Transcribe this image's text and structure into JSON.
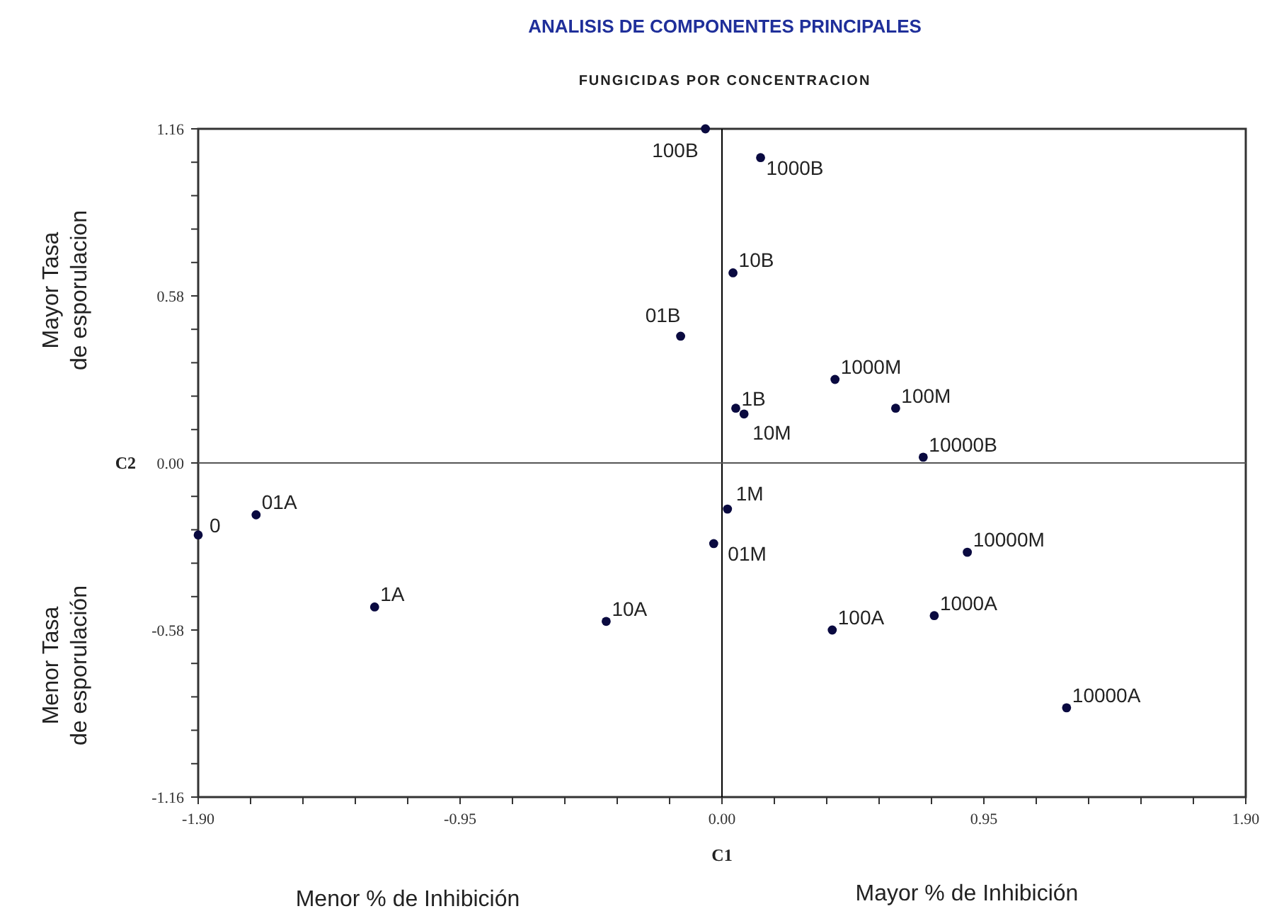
{
  "chart_data": {
    "type": "scatter",
    "title": "ANALISIS DE COMPONENTES PRINCIPALES",
    "subtitle": "FUNGICIDAS POR CONCENTRACION",
    "xlabel": "C1",
    "ylabel": "C2",
    "xlim": [
      -1.9,
      1.9
    ],
    "ylim": [
      -1.16,
      1.16
    ],
    "xticks": [
      {
        "value": -1.9,
        "label": "-1.90"
      },
      {
        "value": -1.71,
        "label": null
      },
      {
        "value": -1.52,
        "label": null
      },
      {
        "value": -1.33,
        "label": null
      },
      {
        "value": -1.14,
        "label": null
      },
      {
        "value": -0.95,
        "label": "-0.95"
      },
      {
        "value": -0.76,
        "label": null
      },
      {
        "value": -0.57,
        "label": null
      },
      {
        "value": -0.38,
        "label": null
      },
      {
        "value": -0.19,
        "label": null
      },
      {
        "value": 0,
        "label": "0.00"
      },
      {
        "value": 0.19,
        "label": null
      },
      {
        "value": 0.38,
        "label": null
      },
      {
        "value": 0.57,
        "label": null
      },
      {
        "value": 0.76,
        "label": null
      },
      {
        "value": 0.95,
        "label": "0.95"
      },
      {
        "value": 1.14,
        "label": null
      },
      {
        "value": 1.33,
        "label": null
      },
      {
        "value": 1.52,
        "label": null
      },
      {
        "value": 1.71,
        "label": null
      },
      {
        "value": 1.9,
        "label": "1.90"
      }
    ],
    "yticks": [
      {
        "value": -1.16,
        "label": "-1.16"
      },
      {
        "value": -1.044,
        "label": null
      },
      {
        "value": -0.928,
        "label": null
      },
      {
        "value": -0.812,
        "label": null
      },
      {
        "value": -0.696,
        "label": null
      },
      {
        "value": -0.58,
        "label": "-0.58"
      },
      {
        "value": -0.464,
        "label": null
      },
      {
        "value": -0.348,
        "label": null
      },
      {
        "value": -0.232,
        "label": null
      },
      {
        "value": -0.116,
        "label": null
      },
      {
        "value": 0,
        "label": "0.00"
      },
      {
        "value": 0.116,
        "label": null
      },
      {
        "value": 0.232,
        "label": null
      },
      {
        "value": 0.348,
        "label": null
      },
      {
        "value": 0.464,
        "label": null
      },
      {
        "value": 0.58,
        "label": "0.58"
      },
      {
        "value": 0.696,
        "label": null
      },
      {
        "value": 0.812,
        "label": null
      },
      {
        "value": 0.928,
        "label": null
      },
      {
        "value": 1.044,
        "label": null
      },
      {
        "value": 1.16,
        "label": "1.16"
      }
    ],
    "marker": "circle",
    "grid": false,
    "ref_lines": [
      {
        "axis": "x",
        "value": 0,
        "color": "#000000"
      },
      {
        "axis": "y",
        "value": 0,
        "color": "#555555"
      }
    ],
    "series": [
      {
        "color": "#0a0a40",
        "x": [
          -0.06,
          0.14,
          0.04,
          -0.15,
          0.41,
          0.63,
          0.05,
          0.08,
          0.73,
          -1.9,
          -1.69,
          0.02,
          -0.03,
          0.89,
          -1.26,
          -0.42,
          0.4,
          0.77,
          1.25
        ],
        "values": [
          1.16,
          1.06,
          0.66,
          0.44,
          0.29,
          0.19,
          0.19,
          0.17,
          0.02,
          -0.25,
          -0.18,
          -0.16,
          -0.28,
          -0.31,
          -0.5,
          -0.55,
          -0.58,
          -0.53,
          -0.85
        ]
      }
    ],
    "annotations": [
      {
        "text": "100B",
        "x": -0.06,
        "y": 1.16
      },
      {
        "text": "1000B",
        "x": 0.14,
        "y": 1.06
      },
      {
        "text": "10B",
        "x": 0.04,
        "y": 0.66
      },
      {
        "text": "01B",
        "x": -0.15,
        "y": 0.44
      },
      {
        "text": "1000M",
        "x": 0.41,
        "y": 0.29
      },
      {
        "text": "100M",
        "x": 0.63,
        "y": 0.19
      },
      {
        "text": "1B",
        "x": 0.05,
        "y": 0.19
      },
      {
        "text": "10M",
        "x": 0.08,
        "y": 0.17
      },
      {
        "text": "10000B",
        "x": 0.73,
        "y": 0.02
      },
      {
        "text": "0",
        "x": -1.9,
        "y": -0.25
      },
      {
        "text": "01A",
        "x": -1.69,
        "y": -0.18
      },
      {
        "text": "1M",
        "x": 0.02,
        "y": -0.16
      },
      {
        "text": "01M",
        "x": -0.03,
        "y": -0.28
      },
      {
        "text": "10000M",
        "x": 0.89,
        "y": -0.31
      },
      {
        "text": "1A",
        "x": -1.26,
        "y": -0.5
      },
      {
        "text": "10A",
        "x": -0.42,
        "y": -0.55
      },
      {
        "text": "100A",
        "x": 0.4,
        "y": -0.58
      },
      {
        "text": "1000A",
        "x": 0.77,
        "y": -0.53
      },
      {
        "text": "10000A",
        "x": 1.25,
        "y": -0.85
      },
      "Mayor Tasa de esporulacion",
      "Menor Tasa de esporulación",
      "Menor % de Inhibición",
      "Mayor % de Inhibición"
    ]
  }
}
